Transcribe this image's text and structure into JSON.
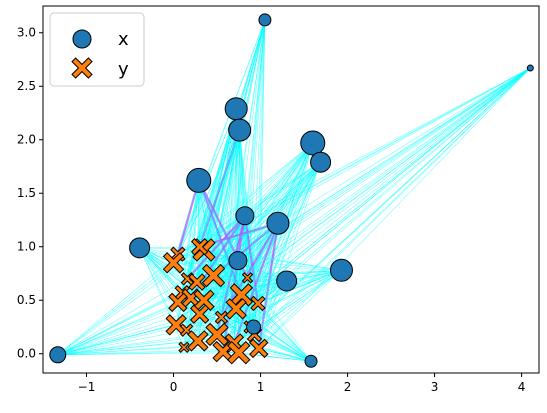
{
  "chart_data": {
    "type": "scatter",
    "title": "",
    "xlabel": "",
    "ylabel": "",
    "xlim": [
      -1.5,
      4.2
    ],
    "ylim": [
      -0.18,
      3.25
    ],
    "xticks": [
      -1,
      0,
      1,
      2,
      3,
      4
    ],
    "yticks": [
      0.0,
      0.5,
      1.0,
      1.5,
      2.0,
      2.5,
      3.0
    ],
    "xtick_labels": [
      "−1",
      "0",
      "1",
      "2",
      "3",
      "4"
    ],
    "ytick_labels": [
      "0.0",
      "0.5",
      "1.0",
      "1.5",
      "2.0",
      "2.5",
      "3.0"
    ],
    "grid": false,
    "legend_position": "top-left",
    "edge_color": "#00ffff",
    "strong_edge_color": "#b44dff",
    "series": [
      {
        "name": "x",
        "marker": "circle",
        "color": "#1f77b4",
        "points": [
          {
            "x": 1.05,
            "y": 3.12,
            "s": 6
          },
          {
            "x": 4.1,
            "y": 2.67,
            "s": 3
          },
          {
            "x": 0.72,
            "y": 2.29,
            "s": 11
          },
          {
            "x": 0.76,
            "y": 2.09,
            "s": 11
          },
          {
            "x": 1.6,
            "y": 1.97,
            "s": 12
          },
          {
            "x": 1.69,
            "y": 1.79,
            "s": 10
          },
          {
            "x": 0.29,
            "y": 1.62,
            "s": 12
          },
          {
            "x": 0.82,
            "y": 1.29,
            "s": 9
          },
          {
            "x": 1.2,
            "y": 1.22,
            "s": 11
          },
          {
            "x": -0.39,
            "y": 0.99,
            "s": 10
          },
          {
            "x": 0.74,
            "y": 0.87,
            "s": 9
          },
          {
            "x": 1.93,
            "y": 0.78,
            "s": 11
          },
          {
            "x": 1.3,
            "y": 0.68,
            "s": 10
          },
          {
            "x": -1.33,
            "y": -0.01,
            "s": 8
          },
          {
            "x": 1.58,
            "y": -0.07,
            "s": 6
          },
          {
            "x": 0.92,
            "y": 0.25,
            "s": 7
          }
        ]
      },
      {
        "name": "y",
        "marker": "x",
        "color": "#ff7f0e",
        "points": [
          {
            "x": 0.35,
            "y": 0.97,
            "s": 11
          },
          {
            "x": 0.3,
            "y": 1.0,
            "s": 8
          },
          {
            "x": 0.05,
            "y": 0.93,
            "s": 7
          },
          {
            "x": 0.0,
            "y": 0.85,
            "s": 10
          },
          {
            "x": 0.16,
            "y": 0.7,
            "s": 6
          },
          {
            "x": 0.27,
            "y": 0.67,
            "s": 8
          },
          {
            "x": 0.46,
            "y": 0.73,
            "s": 11
          },
          {
            "x": 0.85,
            "y": 0.71,
            "s": 5
          },
          {
            "x": 0.1,
            "y": 0.57,
            "s": 7
          },
          {
            "x": 0.2,
            "y": 0.52,
            "s": 9
          },
          {
            "x": 0.35,
            "y": 0.5,
            "s": 10
          },
          {
            "x": 0.05,
            "y": 0.48,
            "s": 9
          },
          {
            "x": 0.78,
            "y": 0.55,
            "s": 11
          },
          {
            "x": 0.72,
            "y": 0.42,
            "s": 10
          },
          {
            "x": 0.97,
            "y": 0.47,
            "s": 7
          },
          {
            "x": 0.3,
            "y": 0.37,
            "s": 9
          },
          {
            "x": 0.55,
            "y": 0.34,
            "s": 6
          },
          {
            "x": 0.03,
            "y": 0.27,
            "s": 10
          },
          {
            "x": 0.15,
            "y": 0.22,
            "s": 6
          },
          {
            "x": 0.5,
            "y": 0.18,
            "s": 11
          },
          {
            "x": 0.28,
            "y": 0.12,
            "s": 10
          },
          {
            "x": 0.7,
            "y": 0.1,
            "s": 9
          },
          {
            "x": 0.88,
            "y": 0.25,
            "s": 6
          },
          {
            "x": 0.12,
            "y": 0.06,
            "s": 5
          },
          {
            "x": 0.57,
            "y": 0.02,
            "s": 10
          },
          {
            "x": 0.75,
            "y": 0.01,
            "s": 11
          },
          {
            "x": 0.98,
            "y": 0.05,
            "s": 9
          },
          {
            "x": 0.93,
            "y": 0.18,
            "s": 7
          }
        ]
      }
    ]
  }
}
